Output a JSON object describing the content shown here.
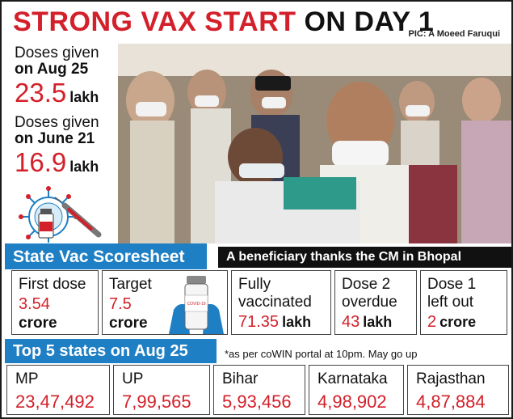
{
  "header": {
    "title_red": "STRONG VAX START",
    "title_black": "ON DAY 1",
    "photo_credit": "PIC: A Moeed Faruqui"
  },
  "doses": [
    {
      "label_pre": "Doses given",
      "label_date": "on Aug 25",
      "value": "23.5",
      "unit": "lakh"
    },
    {
      "label_pre": "Doses given",
      "label_date": "on June 21",
      "value": "16.9",
      "unit": "lakh"
    }
  ],
  "scoresheet": {
    "title": "State Vac Scoresheet",
    "caption": "A beneficiary thanks the CM in Bhopal",
    "items": [
      {
        "label": "First dose",
        "value": "3.54",
        "unit": "crore"
      },
      {
        "label": "Target",
        "value": "7.5",
        "unit": "crore"
      },
      {
        "label": "Fully vaccinated",
        "value": "71.35",
        "unit": "lakh"
      },
      {
        "label": "Dose 2 overdue",
        "value": "43",
        "unit": "lakh"
      },
      {
        "label": "Dose 1 left out",
        "value": "2",
        "unit": "crore"
      }
    ],
    "vial_label": "COVID-19"
  },
  "top_states": {
    "title": "Top 5 states on Aug 25",
    "note": "*as per coWIN portal at 10pm. May go up",
    "items": [
      {
        "name": "MP",
        "value": "23,47,492"
      },
      {
        "name": "UP",
        "value": "7,99,565"
      },
      {
        "name": "Bihar",
        "value": "5,93,456"
      },
      {
        "name": "Karnataka",
        "value": "4,98,902"
      },
      {
        "name": "Rajasthan",
        "value": "4,87,884"
      }
    ]
  },
  "colors": {
    "accent_red": "#d3202a",
    "accent_blue": "#1f7fc4",
    "dark": "#111111"
  }
}
